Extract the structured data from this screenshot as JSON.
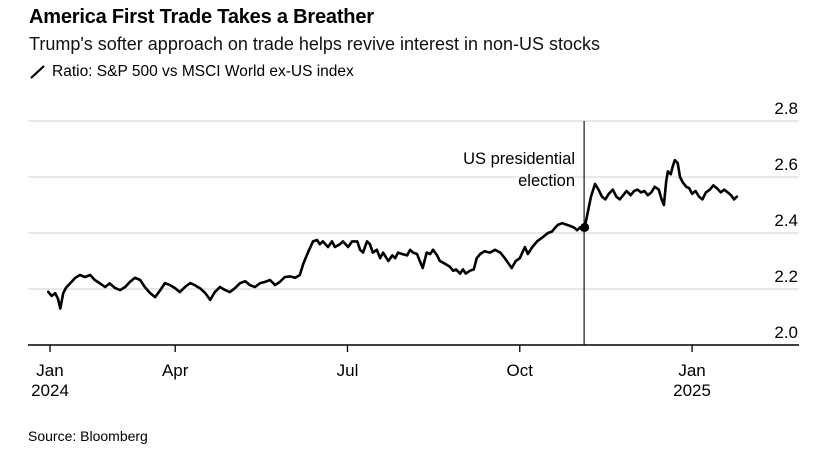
{
  "footer": {
    "source": "Source: Bloomberg"
  },
  "colors": {
    "background": "#ffffff",
    "line": "#000000",
    "grid": "#d2d2d2",
    "axis": "#000000",
    "event_line": "#000000",
    "text": "#000000"
  },
  "chart_data": {
    "type": "line",
    "title": "America First Trade Takes a Breather",
    "subtitle": "Trump's softer approach on trade helps revive interest in non-US stocks",
    "source_note": "Source: Bloomberg",
    "legend_position": "top-left",
    "grid": "horizontal",
    "ylabel_side": "right",
    "ylim": [
      2.0,
      2.8
    ],
    "yticks": [
      2.0,
      2.2,
      2.4,
      2.6,
      2.8
    ],
    "x_unit": "months since 2024-01-01",
    "xlim": [
      0.44,
      13.86
    ],
    "xticks": [
      {
        "m": 0.82,
        "label": "Jan",
        "sublabel": "2024"
      },
      {
        "m": 3,
        "label": "Apr"
      },
      {
        "m": 6,
        "label": "Jul"
      },
      {
        "m": 9,
        "label": "Oct"
      },
      {
        "m": 12,
        "label": "Jan",
        "sublabel": "2025"
      }
    ],
    "event": {
      "m": 10.12,
      "label": [
        "US presidential",
        "election"
      ],
      "dot": [
        10.13,
        2.42
      ]
    },
    "series": [
      {
        "name": "Ratio: S&P 500 vs MSCI World ex-US index",
        "points": [
          [
            0.79,
            2.19
          ],
          [
            0.85,
            2.175
          ],
          [
            0.91,
            2.185
          ],
          [
            0.96,
            2.165
          ],
          [
            1.0,
            2.13
          ],
          [
            1.05,
            2.185
          ],
          [
            1.1,
            2.205
          ],
          [
            1.17,
            2.22
          ],
          [
            1.26,
            2.24
          ],
          [
            1.34,
            2.25
          ],
          [
            1.43,
            2.243
          ],
          [
            1.52,
            2.25
          ],
          [
            1.6,
            2.232
          ],
          [
            1.69,
            2.22
          ],
          [
            1.78,
            2.207
          ],
          [
            1.86,
            2.22
          ],
          [
            1.95,
            2.204
          ],
          [
            2.04,
            2.196
          ],
          [
            2.13,
            2.207
          ],
          [
            2.21,
            2.225
          ],
          [
            2.3,
            2.24
          ],
          [
            2.39,
            2.232
          ],
          [
            2.47,
            2.207
          ],
          [
            2.56,
            2.186
          ],
          [
            2.65,
            2.171
          ],
          [
            2.74,
            2.196
          ],
          [
            2.82,
            2.221
          ],
          [
            2.91,
            2.214
          ],
          [
            3.0,
            2.203
          ],
          [
            3.08,
            2.189
          ],
          [
            3.17,
            2.207
          ],
          [
            3.26,
            2.221
          ],
          [
            3.34,
            2.214
          ],
          [
            3.43,
            2.203
          ],
          [
            3.52,
            2.186
          ],
          [
            3.61,
            2.161
          ],
          [
            3.69,
            2.189
          ],
          [
            3.78,
            2.207
          ],
          [
            3.87,
            2.196
          ],
          [
            3.95,
            2.189
          ],
          [
            4.04,
            2.203
          ],
          [
            4.13,
            2.221
          ],
          [
            4.22,
            2.228
          ],
          [
            4.3,
            2.214
          ],
          [
            4.39,
            2.207
          ],
          [
            4.48,
            2.221
          ],
          [
            4.56,
            2.225
          ],
          [
            4.65,
            2.232
          ],
          [
            4.74,
            2.214
          ],
          [
            4.82,
            2.225
          ],
          [
            4.91,
            2.243
          ],
          [
            5.0,
            2.245
          ],
          [
            5.09,
            2.24
          ],
          [
            5.17,
            2.25
          ],
          [
            5.23,
            2.29
          ],
          [
            5.31,
            2.33
          ],
          [
            5.4,
            2.37
          ],
          [
            5.47,
            2.375
          ],
          [
            5.52,
            2.36
          ],
          [
            5.57,
            2.37
          ],
          [
            5.66,
            2.35
          ],
          [
            5.73,
            2.37
          ],
          [
            5.78,
            2.35
          ],
          [
            5.87,
            2.36
          ],
          [
            5.92,
            2.37
          ],
          [
            6.01,
            2.35
          ],
          [
            6.08,
            2.37
          ],
          [
            6.17,
            2.37
          ],
          [
            6.22,
            2.34
          ],
          [
            6.27,
            2.33
          ],
          [
            6.34,
            2.37
          ],
          [
            6.39,
            2.36
          ],
          [
            6.44,
            2.33
          ],
          [
            6.51,
            2.34
          ],
          [
            6.57,
            2.31
          ],
          [
            6.62,
            2.33
          ],
          [
            6.71,
            2.3
          ],
          [
            6.78,
            2.32
          ],
          [
            6.83,
            2.31
          ],
          [
            6.88,
            2.33
          ],
          [
            6.95,
            2.325
          ],
          [
            7.04,
            2.32
          ],
          [
            7.09,
            2.34
          ],
          [
            7.14,
            2.33
          ],
          [
            7.21,
            2.325
          ],
          [
            7.26,
            2.3
          ],
          [
            7.31,
            2.275
          ],
          [
            7.38,
            2.33
          ],
          [
            7.44,
            2.325
          ],
          [
            7.49,
            2.34
          ],
          [
            7.56,
            2.32
          ],
          [
            7.61,
            2.3
          ],
          [
            7.7,
            2.29
          ],
          [
            7.78,
            2.28
          ],
          [
            7.84,
            2.265
          ],
          [
            7.89,
            2.27
          ],
          [
            7.96,
            2.255
          ],
          [
            8.01,
            2.27
          ],
          [
            8.06,
            2.255
          ],
          [
            8.13,
            2.265
          ],
          [
            8.2,
            2.27
          ],
          [
            8.25,
            2.31
          ],
          [
            8.31,
            2.325
          ],
          [
            8.39,
            2.335
          ],
          [
            8.48,
            2.33
          ],
          [
            8.57,
            2.34
          ],
          [
            8.66,
            2.33
          ],
          [
            8.74,
            2.31
          ],
          [
            8.86,
            2.275
          ],
          [
            8.93,
            2.3
          ],
          [
            9.0,
            2.31
          ],
          [
            9.09,
            2.35
          ],
          [
            9.14,
            2.325
          ],
          [
            9.22,
            2.35
          ],
          [
            9.3,
            2.37
          ],
          [
            9.4,
            2.385
          ],
          [
            9.49,
            2.4
          ],
          [
            9.56,
            2.405
          ],
          [
            9.62,
            2.42
          ],
          [
            9.67,
            2.43
          ],
          [
            9.74,
            2.435
          ],
          [
            9.81,
            2.43
          ],
          [
            9.88,
            2.425
          ],
          [
            9.94,
            2.42
          ],
          [
            10.0,
            2.41
          ],
          [
            10.05,
            2.42
          ],
          [
            10.09,
            2.41
          ],
          [
            10.13,
            2.42
          ],
          [
            10.16,
            2.45
          ],
          [
            10.2,
            2.49
          ],
          [
            10.24,
            2.53
          ],
          [
            10.31,
            2.575
          ],
          [
            10.37,
            2.555
          ],
          [
            10.43,
            2.53
          ],
          [
            10.49,
            2.52
          ],
          [
            10.55,
            2.54
          ],
          [
            10.62,
            2.555
          ],
          [
            10.68,
            2.53
          ],
          [
            10.74,
            2.52
          ],
          [
            10.8,
            2.535
          ],
          [
            10.86,
            2.55
          ],
          [
            10.93,
            2.535
          ],
          [
            10.99,
            2.55
          ],
          [
            11.05,
            2.555
          ],
          [
            11.11,
            2.545
          ],
          [
            11.17,
            2.55
          ],
          [
            11.23,
            2.535
          ],
          [
            11.29,
            2.545
          ],
          [
            11.35,
            2.565
          ],
          [
            11.42,
            2.555
          ],
          [
            11.47,
            2.52
          ],
          [
            11.51,
            2.5
          ],
          [
            11.55,
            2.585
          ],
          [
            11.58,
            2.62
          ],
          [
            11.63,
            2.61
          ],
          [
            11.66,
            2.635
          ],
          [
            11.7,
            2.66
          ],
          [
            11.75,
            2.65
          ],
          [
            11.79,
            2.6
          ],
          [
            11.84,
            2.58
          ],
          [
            11.9,
            2.565
          ],
          [
            11.95,
            2.56
          ],
          [
            12.0,
            2.54
          ],
          [
            12.06,
            2.55
          ],
          [
            12.12,
            2.53
          ],
          [
            12.18,
            2.52
          ],
          [
            12.24,
            2.545
          ],
          [
            12.31,
            2.555
          ],
          [
            12.37,
            2.57
          ],
          [
            12.43,
            2.56
          ],
          [
            12.5,
            2.545
          ],
          [
            12.56,
            2.555
          ],
          [
            12.62,
            2.545
          ],
          [
            12.68,
            2.535
          ],
          [
            12.73,
            2.52
          ],
          [
            12.78,
            2.53
          ]
        ]
      }
    ]
  }
}
